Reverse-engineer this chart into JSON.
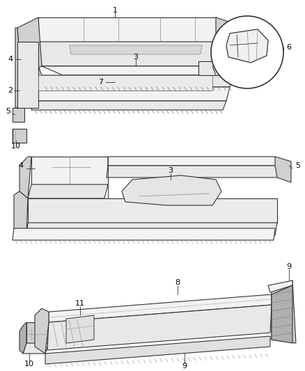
{
  "background_color": "#ffffff",
  "line_color": "#333333",
  "fig_width": 4.38,
  "fig_height": 5.33,
  "dpi": 100,
  "font_size": 8,
  "gray_light": "#e8e8e8",
  "gray_mid": "#d0d0d0",
  "gray_dark": "#b0b0b0",
  "gray_face": "#f2f2f2"
}
